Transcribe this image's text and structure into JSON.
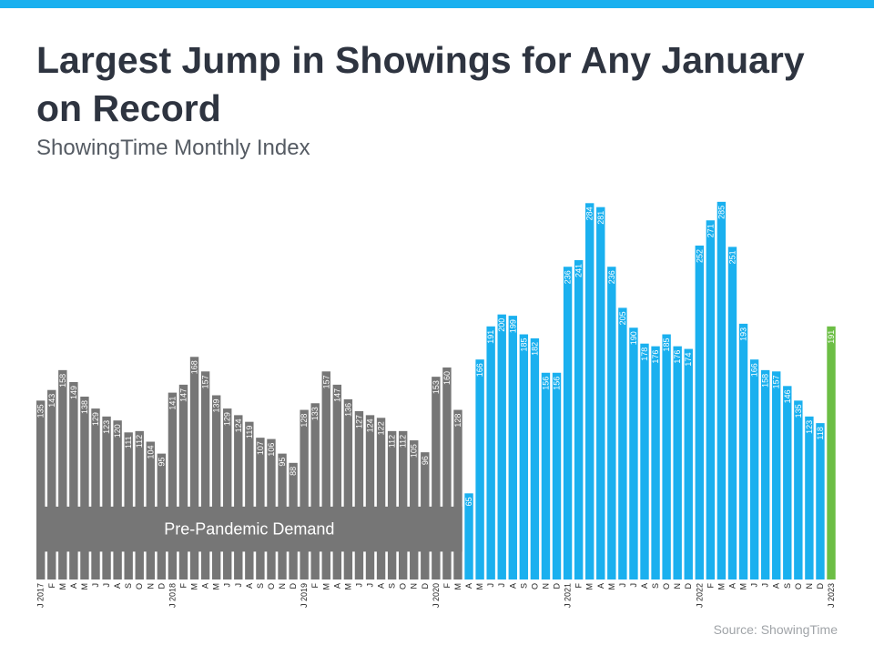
{
  "header": {
    "title": "Largest Jump in Showings for Any January on Record",
    "subtitle": "ShowingTime Monthly Index"
  },
  "footer": {
    "source": "Source: ShowingTime"
  },
  "colors": {
    "top_bar": "#1ab0ef",
    "pre_pandemic": "#767676",
    "pandemic": "#1ab0ef",
    "latest": "#6cbe45",
    "band_text": "#ffffff",
    "value_label": "#ffffff",
    "tick_label": "#222222"
  },
  "chart_data": {
    "type": "bar",
    "title": "Largest Jump in Showings for Any January on Record",
    "subtitle": "ShowingTime Monthly Index",
    "xlabel": "",
    "ylabel": "",
    "ylim": [
      0,
      300
    ],
    "grid": false,
    "legend": "none",
    "categories": [
      "J 2017",
      "F",
      "M",
      "A",
      "M",
      "J",
      "J",
      "A",
      "S",
      "O",
      "N",
      "D",
      "J 2018",
      "F",
      "M",
      "A",
      "M",
      "J",
      "J",
      "A",
      "S",
      "O",
      "N",
      "D",
      "J 2019",
      "F",
      "M",
      "A",
      "M",
      "J",
      "J",
      "A",
      "S",
      "O",
      "N",
      "D",
      "J 2020",
      "F",
      "M",
      "A",
      "M",
      "J",
      "J",
      "A",
      "S",
      "O",
      "N",
      "D",
      "J 2021",
      "F",
      "M",
      "A",
      "M",
      "J",
      "J",
      "A",
      "S",
      "O",
      "N",
      "D",
      "J 2022",
      "F",
      "M",
      "A",
      "M",
      "J",
      "J",
      "A",
      "S",
      "O",
      "N",
      "D",
      "J 2023"
    ],
    "values": [
      135,
      143,
      158,
      149,
      138,
      129,
      123,
      120,
      111,
      112,
      104,
      95,
      141,
      147,
      168,
      157,
      139,
      129,
      124,
      119,
      107,
      106,
      95,
      88,
      128,
      133,
      157,
      147,
      136,
      127,
      124,
      122,
      112,
      112,
      105,
      96,
      153,
      160,
      128,
      65,
      166,
      191,
      200,
      199,
      185,
      182,
      156,
      156,
      236,
      241,
      284,
      281,
      236,
      205,
      190,
      178,
      176,
      185,
      176,
      174,
      252,
      271,
      285,
      251,
      193,
      166,
      158,
      157,
      146,
      135,
      123,
      118,
      191
    ],
    "segments": [
      {
        "start": 0,
        "end": 38,
        "color": "#767676"
      },
      {
        "start": 39,
        "end": 71,
        "color": "#1ab0ef"
      },
      {
        "start": 72,
        "end": 72,
        "color": "#6cbe45"
      }
    ],
    "annotations": [
      {
        "text": "Pre-Pandemic Demand",
        "from_index": 0,
        "to_index": 38,
        "band_top": 55,
        "band_bottom": 21
      }
    ]
  }
}
